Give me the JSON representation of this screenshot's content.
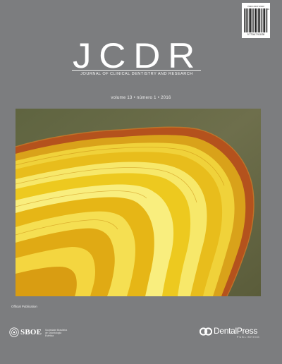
{
  "barcode": {
    "issn": "ISSN 2447-9343",
    "number": "9 772447 911138",
    "issue": "01"
  },
  "journal": {
    "acronym": "JCDR",
    "full_title": "JOURNAL OF CLINICAL DENTISTRY AND RESEARCH",
    "volume_line": "volume 13 • número 1 • 2016"
  },
  "cover_image": {
    "subject": "agate-slice"
  },
  "footer": {
    "official_label": "Official Publication",
    "sboe_name": "SBOE",
    "sboe_description": "Sociedade Brasileira de Odontologia Estética",
    "publisher_name": "DentalPress",
    "publisher_sub": "PUBLISHING"
  },
  "colors": {
    "background": "#7c7d7f",
    "text": "#ffffff",
    "agate_gold": "#e8c21a",
    "agate_rind": "#b0501c"
  }
}
